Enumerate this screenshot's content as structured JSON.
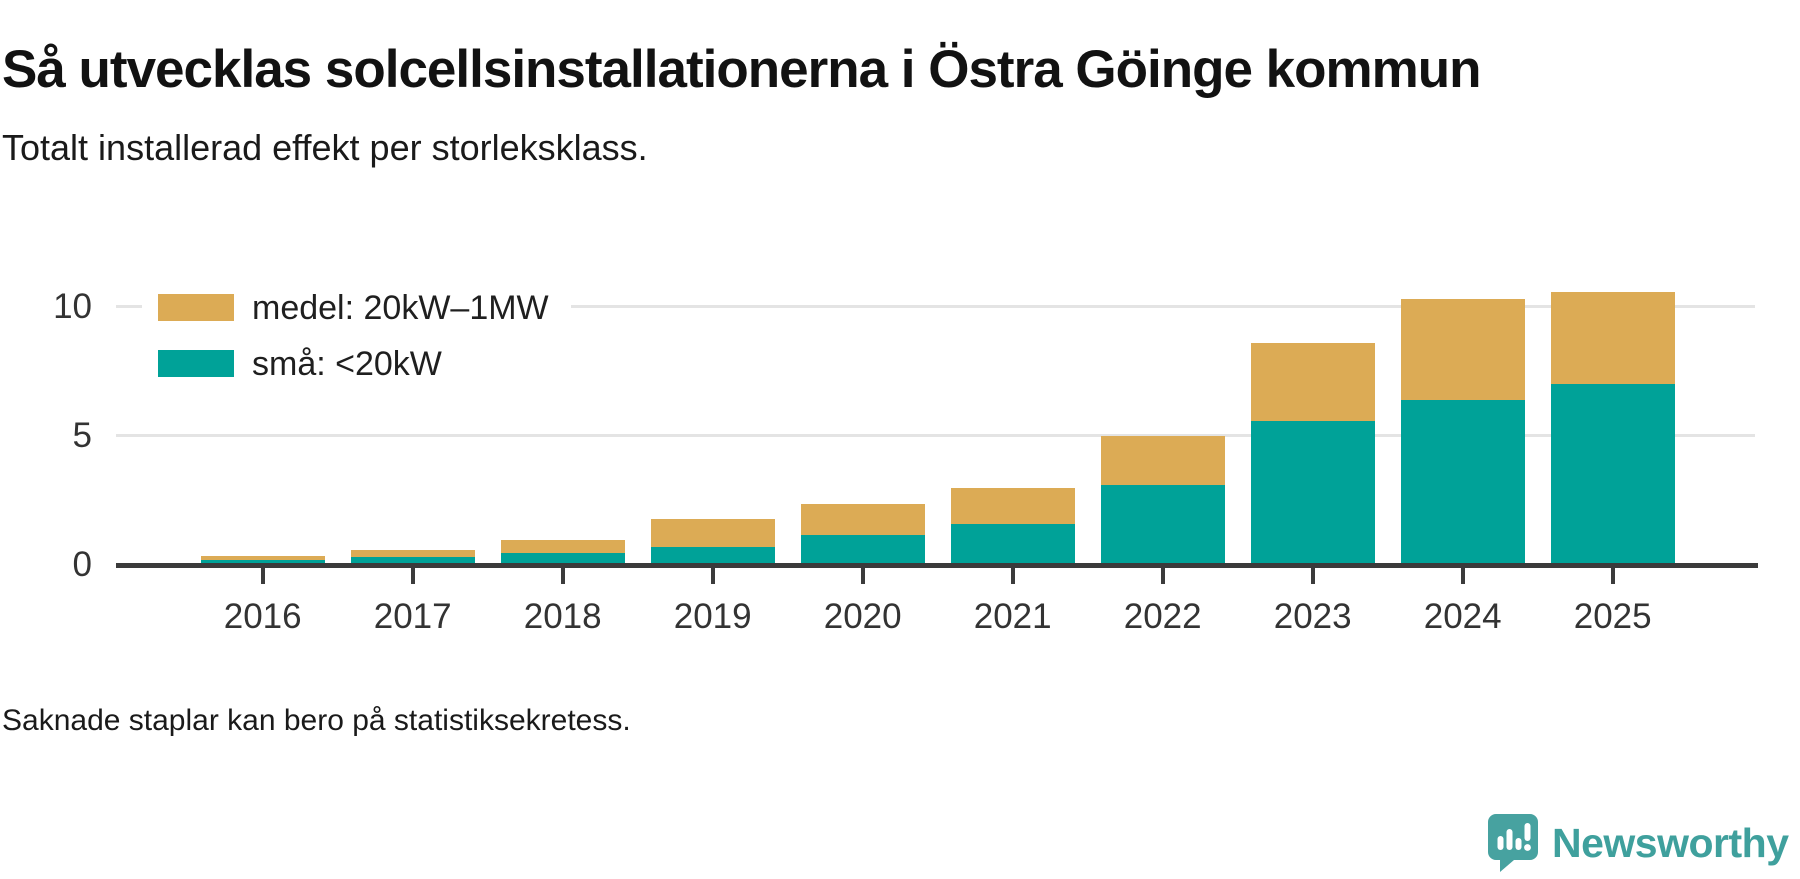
{
  "header": {
    "title": "Så utvecklas solcellsinstallationerna i Östra Göinge kommun",
    "subtitle": "Totalt installerad effekt per storleksklass."
  },
  "chart_data": {
    "type": "bar",
    "stacked": true,
    "title": "Så utvecklas solcellsinstallationerna i Östra Göinge kommun",
    "subtitle": "Totalt installerad effekt per storleksklass.",
    "categories": [
      "2016",
      "2017",
      "2018",
      "2019",
      "2020",
      "2021",
      "2022",
      "2023",
      "2024",
      "2025"
    ],
    "series": [
      {
        "name": "små: <20kW",
        "color": "#00a298",
        "values": [
          0.2,
          0.3,
          0.45,
          0.7,
          1.15,
          1.6,
          3.1,
          5.6,
          6.4,
          7.0
        ]
      },
      {
        "name": "medel: 20kW–1MW",
        "color": "#dcab55",
        "values": [
          0.15,
          0.3,
          0.5,
          1.1,
          1.2,
          1.4,
          1.9,
          3.0,
          3.9,
          3.6
        ]
      }
    ],
    "totals": [
      0.35,
      0.6,
      0.95,
      1.8,
      2.35,
      3.0,
      5.0,
      8.6,
      10.3,
      10.6
    ],
    "y_axis": {
      "ticks": [
        0,
        5,
        10
      ],
      "tick_labels": [
        "0",
        "5",
        "10"
      ],
      "range": [
        0,
        10.8
      ],
      "gridlines": true,
      "label": ""
    },
    "x_axis": {
      "label": ""
    },
    "legend_position": "top-left"
  },
  "legend": {
    "items": [
      {
        "label": "medel: 20kW–1MW",
        "color": "#dcab55"
      },
      {
        "label": "små: <20kW",
        "color": "#00a298"
      }
    ]
  },
  "footer": {
    "note": "Saknade staplar kan bero på statistiksekretess."
  },
  "branding": {
    "logo_text": "Newsworthy",
    "logo_color": "#3fa09d",
    "logo_icon_color": "#47a2a0",
    "logo_icon": "newsworthy-speech-bubble-bar-chart-icon"
  },
  "colors": {
    "sma_teal": "#00a298",
    "medel_gold": "#dcab55",
    "axis": "#3b3b3b",
    "gridline": "#e4e4e4",
    "text_dark": "#1a1a1a"
  }
}
